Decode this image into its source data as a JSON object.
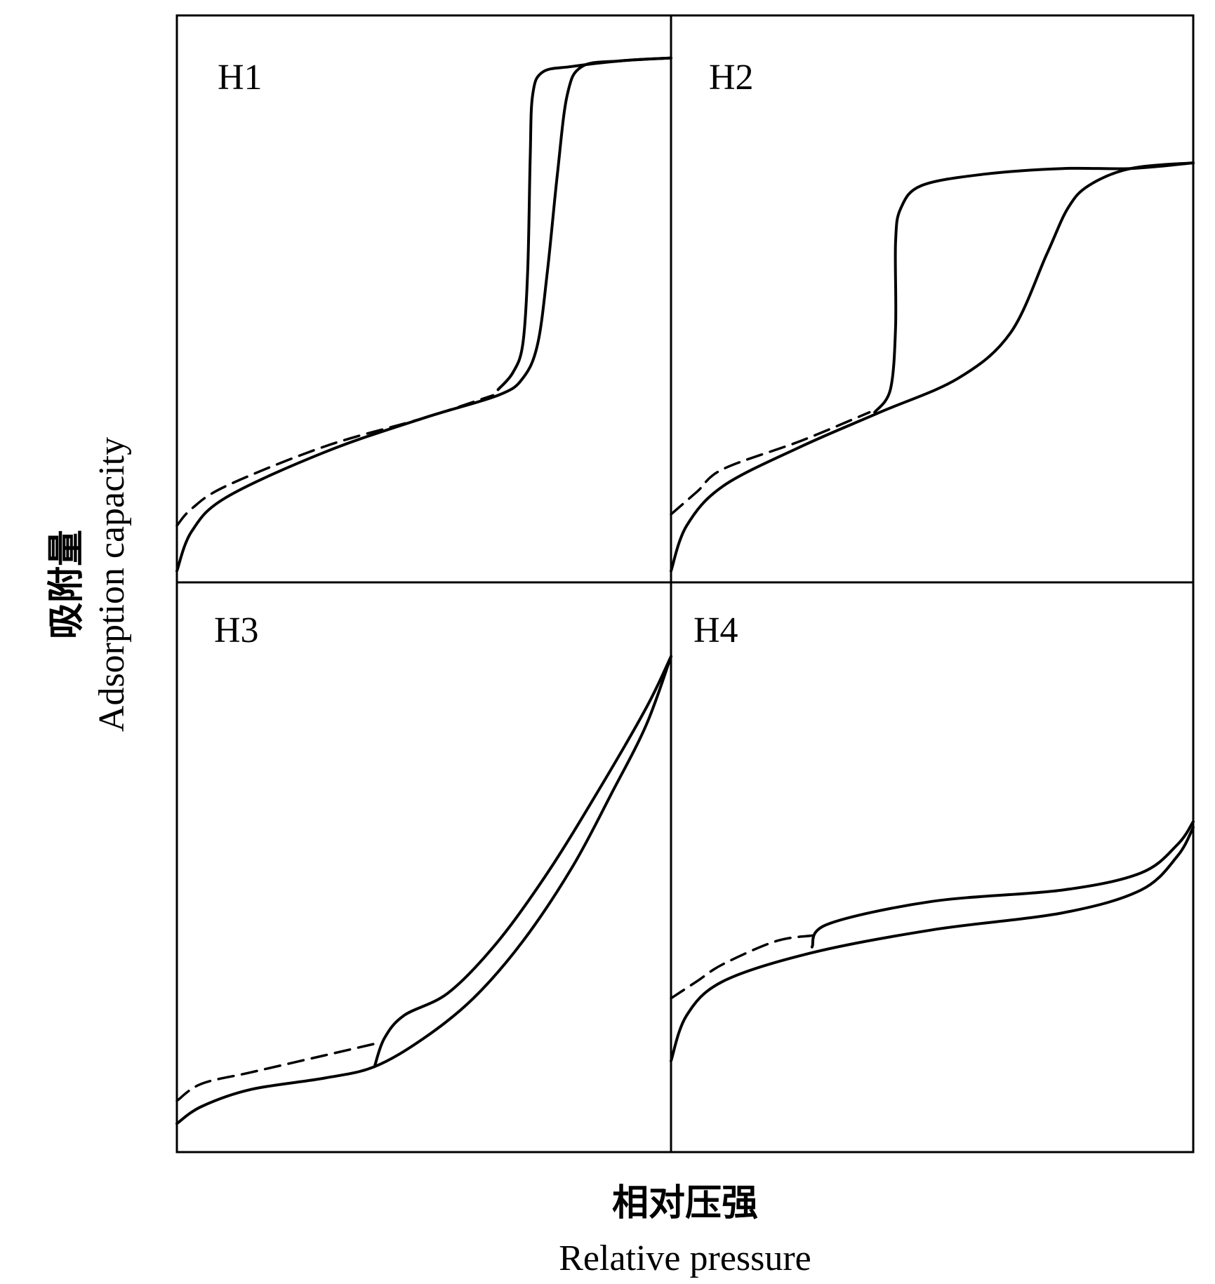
{
  "chart_data": {
    "type": "line",
    "axis_labels": {
      "x_cn": "相对压强",
      "x_en": "Relative pressure",
      "y_cn": "吸附量",
      "y_en": "Adsorption capacity"
    },
    "panels": [
      {
        "label": "H1",
        "series": [
          {
            "style": "solid",
            "points": [
              [
                0.0,
                0.02
              ],
              [
                0.03,
                0.09
              ],
              [
                0.1,
                0.15
              ],
              [
                0.3,
                0.23
              ],
              [
                0.5,
                0.29
              ],
              [
                0.65,
                0.33
              ],
              [
                0.7,
                0.36
              ],
              [
                0.73,
                0.42
              ],
              [
                0.75,
                0.55
              ],
              [
                0.77,
                0.72
              ],
              [
                0.79,
                0.86
              ],
              [
                0.82,
                0.91
              ],
              [
                0.9,
                0.92
              ],
              [
                1.0,
                0.925
              ]
            ]
          },
          {
            "style": "solid",
            "points": [
              [
                0.65,
                0.34
              ],
              [
                0.68,
                0.37
              ],
              [
                0.7,
                0.42
              ],
              [
                0.71,
                0.55
              ],
              [
                0.715,
                0.75
              ],
              [
                0.72,
                0.86
              ],
              [
                0.74,
                0.9
              ],
              [
                0.8,
                0.91
              ],
              [
                0.9,
                0.92
              ],
              [
                1.0,
                0.925
              ]
            ]
          },
          {
            "style": "dashed",
            "points": [
              [
                0.0,
                0.1
              ],
              [
                0.03,
                0.13
              ],
              [
                0.1,
                0.17
              ],
              [
                0.3,
                0.24
              ],
              [
                0.5,
                0.29
              ],
              [
                0.64,
                0.33
              ]
            ]
          }
        ]
      },
      {
        "label": "H2",
        "series": [
          {
            "style": "solid",
            "points": [
              [
                0.0,
                0.02
              ],
              [
                0.03,
                0.1
              ],
              [
                0.1,
                0.17
              ],
              [
                0.25,
                0.24
              ],
              [
                0.4,
                0.3
              ],
              [
                0.55,
                0.36
              ],
              [
                0.65,
                0.44
              ],
              [
                0.72,
                0.58
              ],
              [
                0.76,
                0.66
              ],
              [
                0.8,
                0.7
              ],
              [
                0.88,
                0.73
              ],
              [
                1.0,
                0.74
              ]
            ]
          },
          {
            "style": "solid",
            "points": [
              [
                0.39,
                0.3
              ],
              [
                0.42,
                0.34
              ],
              [
                0.43,
                0.45
              ],
              [
                0.43,
                0.6
              ],
              [
                0.44,
                0.66
              ],
              [
                0.48,
                0.7
              ],
              [
                0.6,
                0.72
              ],
              [
                0.75,
                0.73
              ],
              [
                0.88,
                0.73
              ],
              [
                1.0,
                0.74
              ]
            ]
          },
          {
            "style": "dashed",
            "points": [
              [
                0.0,
                0.12
              ],
              [
                0.05,
                0.16
              ],
              [
                0.1,
                0.2
              ],
              [
                0.25,
                0.25
              ],
              [
                0.38,
                0.3
              ]
            ]
          }
        ]
      },
      {
        "label": "H3",
        "series": [
          {
            "style": "solid",
            "points": [
              [
                0.0,
                0.05
              ],
              [
                0.05,
                0.08
              ],
              [
                0.15,
                0.11
              ],
              [
                0.3,
                0.13
              ],
              [
                0.4,
                0.15
              ],
              [
                0.5,
                0.2
              ],
              [
                0.6,
                0.27
              ],
              [
                0.7,
                0.37
              ],
              [
                0.8,
                0.5
              ],
              [
                0.88,
                0.63
              ],
              [
                0.95,
                0.75
              ],
              [
                1.0,
                0.87
              ]
            ]
          },
          {
            "style": "solid",
            "points": [
              [
                0.4,
                0.15
              ],
              [
                0.42,
                0.2
              ],
              [
                0.46,
                0.24
              ],
              [
                0.55,
                0.28
              ],
              [
                0.65,
                0.37
              ],
              [
                0.75,
                0.49
              ],
              [
                0.85,
                0.63
              ],
              [
                0.95,
                0.78
              ],
              [
                1.0,
                0.87
              ]
            ]
          },
          {
            "style": "dashed",
            "points": [
              [
                0.0,
                0.09
              ],
              [
                0.05,
                0.12
              ],
              [
                0.15,
                0.14
              ],
              [
                0.3,
                0.17
              ],
              [
                0.4,
                0.19
              ]
            ]
          }
        ]
      },
      {
        "label": "H4",
        "series": [
          {
            "style": "solid",
            "points": [
              [
                0.0,
                0.16
              ],
              [
                0.03,
                0.24
              ],
              [
                0.1,
                0.3
              ],
              [
                0.27,
                0.35
              ],
              [
                0.5,
                0.39
              ],
              [
                0.75,
                0.42
              ],
              [
                0.9,
                0.46
              ],
              [
                0.97,
                0.52
              ],
              [
                1.0,
                0.57
              ]
            ]
          },
          {
            "style": "solid",
            "points": [
              [
                0.27,
                0.36
              ],
              [
                0.3,
                0.4
              ],
              [
                0.5,
                0.44
              ],
              [
                0.75,
                0.46
              ],
              [
                0.9,
                0.49
              ],
              [
                0.97,
                0.54
              ],
              [
                1.0,
                0.58
              ]
            ]
          },
          {
            "style": "dashed",
            "points": [
              [
                0.0,
                0.27
              ],
              [
                0.05,
                0.3
              ],
              [
                0.1,
                0.33
              ],
              [
                0.2,
                0.37
              ],
              [
                0.27,
                0.38
              ]
            ]
          }
        ]
      }
    ]
  }
}
